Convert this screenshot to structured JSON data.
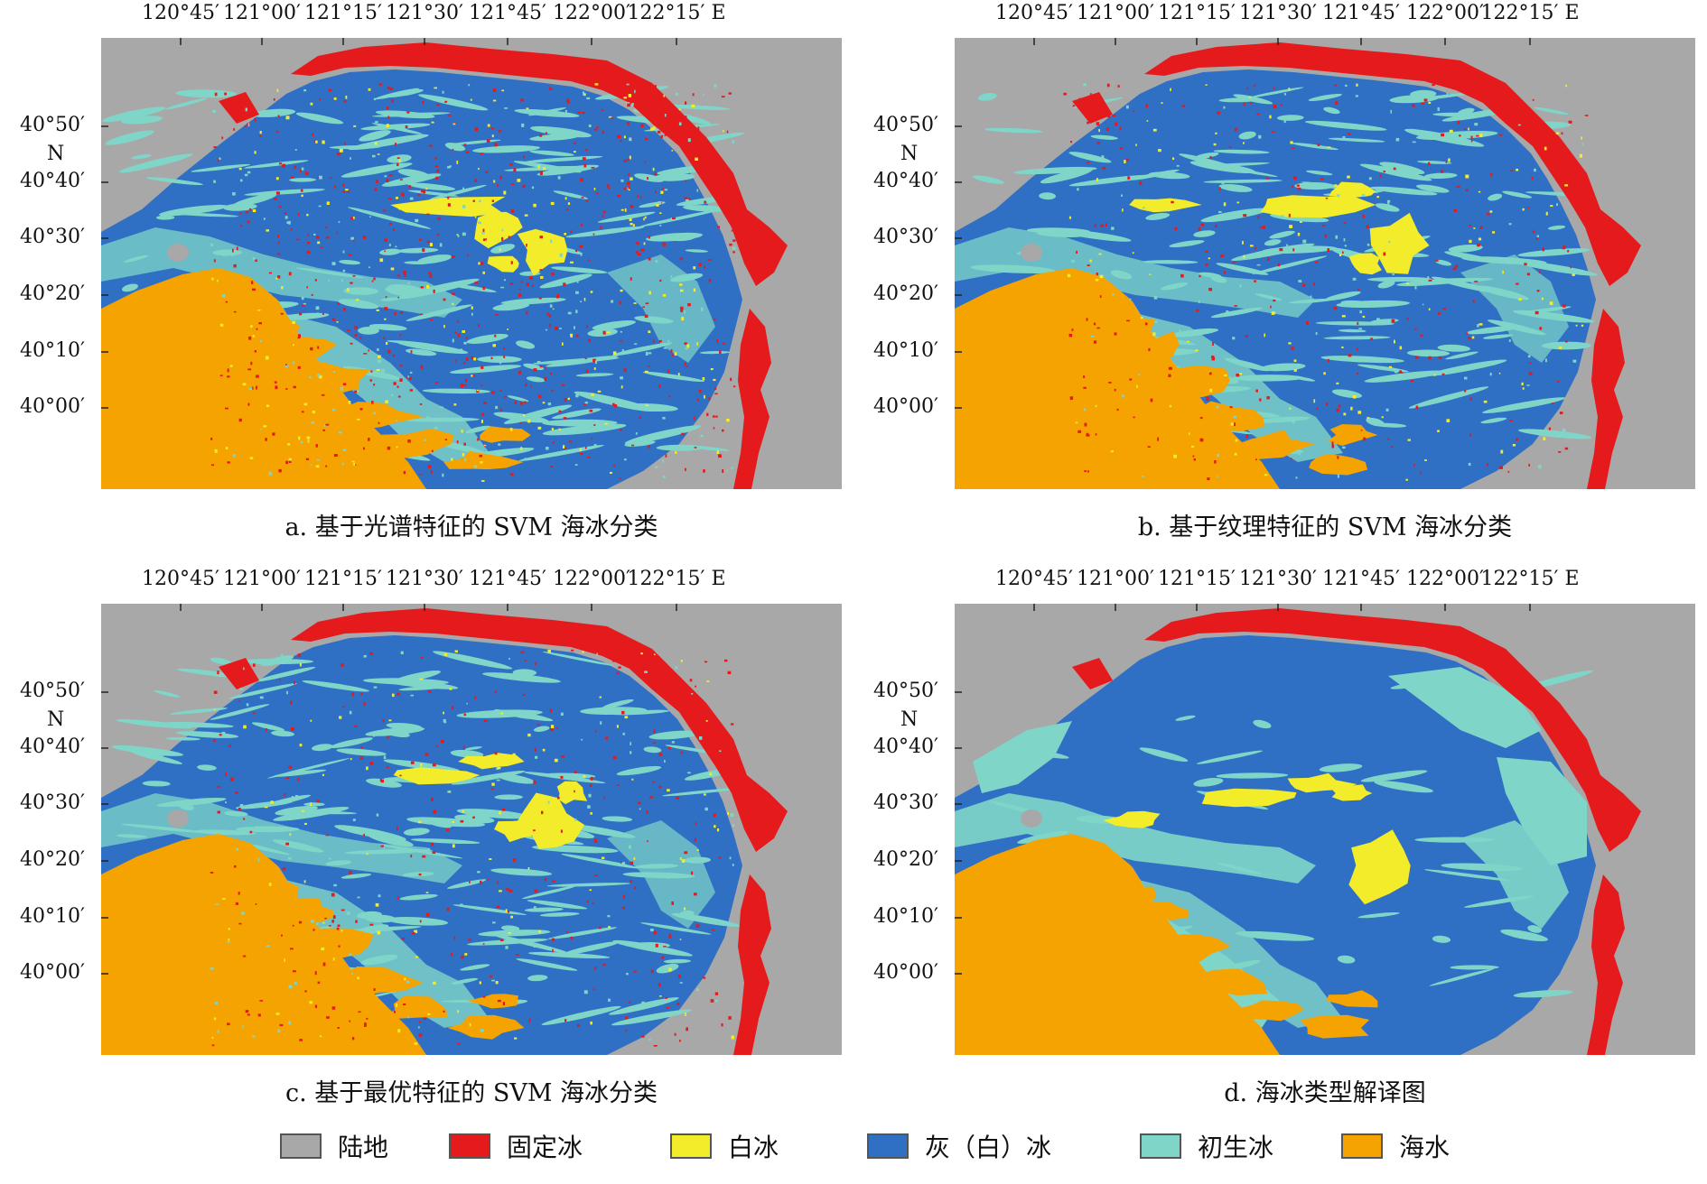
{
  "axes": {
    "lon_ticks": [
      "120°45′",
      "121°00′",
      "121°15′",
      "121°30′",
      "121°45′",
      "122°00′",
      "122°15′ E"
    ],
    "lat_ticks": [
      "40°50′",
      "40°40′",
      "40°30′",
      "40°20′",
      "40°10′",
      "40°00′"
    ],
    "n_label": "N"
  },
  "panels": [
    {
      "id": "a",
      "caption": "a. 基于光谱特征的 SVM 海冰分类"
    },
    {
      "id": "b",
      "caption": "b. 基于纹理特征的 SVM 海冰分类"
    },
    {
      "id": "c",
      "caption": "c. 基于最优特征的 SVM 海冰分类"
    },
    {
      "id": "d",
      "caption": "d. 海冰类型解译图"
    }
  ],
  "legend": [
    {
      "label": "陆地",
      "color": "#a8a8a8"
    },
    {
      "label": "固定冰",
      "color": "#e41a1c"
    },
    {
      "label": "白冰",
      "color": "#f2ec2a"
    },
    {
      "label": "灰（白）冰",
      "color": "#2f6fc4"
    },
    {
      "label": "初生冰",
      "color": "#7fd6c8"
    },
    {
      "label": "海水",
      "color": "#f5a300"
    }
  ]
}
